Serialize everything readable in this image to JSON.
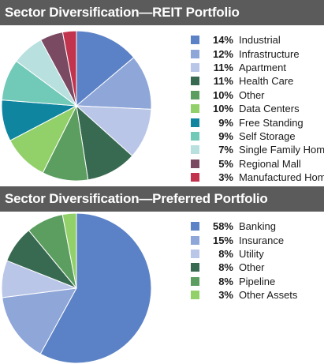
{
  "chart_data": [
    {
      "type": "pie",
      "title": "Sector Diversification—REIT Portfolio",
      "legend_position": "right",
      "slices": [
        {
          "label": "Industrial",
          "value": 14,
          "display": "14%",
          "color": "#5b82c6"
        },
        {
          "label": "Infrastructure",
          "value": 12,
          "display": "12%",
          "color": "#8ea6d8"
        },
        {
          "label": "Apartment",
          "value": 11,
          "display": "11%",
          "color": "#b9c6e8"
        },
        {
          "label": "Health Care",
          "value": 11,
          "display": "11%",
          "color": "#386a52"
        },
        {
          "label": "Other",
          "value": 10,
          "display": "10%",
          "color": "#5b9e5f"
        },
        {
          "label": "Data Centers",
          "value": 10,
          "display": "10%",
          "color": "#92d06a"
        },
        {
          "label": "Free Standing",
          "value": 9,
          "display": "9%",
          "color": "#0f85a0"
        },
        {
          "label": "Self Storage",
          "value": 9,
          "display": "9%",
          "color": "#71c9b8"
        },
        {
          "label": "Single Family Homes",
          "value": 7,
          "display": "7%",
          "color": "#b7e0df"
        },
        {
          "label": "Regional Mall",
          "value": 5,
          "display": "5%",
          "color": "#7a4a63"
        },
        {
          "label": "Manufactured Home",
          "value": 3,
          "display": "3%",
          "color": "#c2344e"
        }
      ]
    },
    {
      "type": "pie",
      "title": "Sector Diversification—Preferred Portfolio",
      "legend_position": "right",
      "slices": [
        {
          "label": "Banking",
          "value": 58,
          "display": "58%",
          "color": "#5b82c6"
        },
        {
          "label": "Insurance",
          "value": 15,
          "display": "15%",
          "color": "#8ea6d8"
        },
        {
          "label": "Utility",
          "value": 8,
          "display": "8%",
          "color": "#b9c6e8"
        },
        {
          "label": "Other",
          "value": 8,
          "display": "8%",
          "color": "#386a52"
        },
        {
          "label": "Pipeline",
          "value": 8,
          "display": "8%",
          "color": "#5b9e5f"
        },
        {
          "label": "Other Assets",
          "value": 3,
          "display": "3%",
          "color": "#92d06a"
        }
      ]
    }
  ]
}
